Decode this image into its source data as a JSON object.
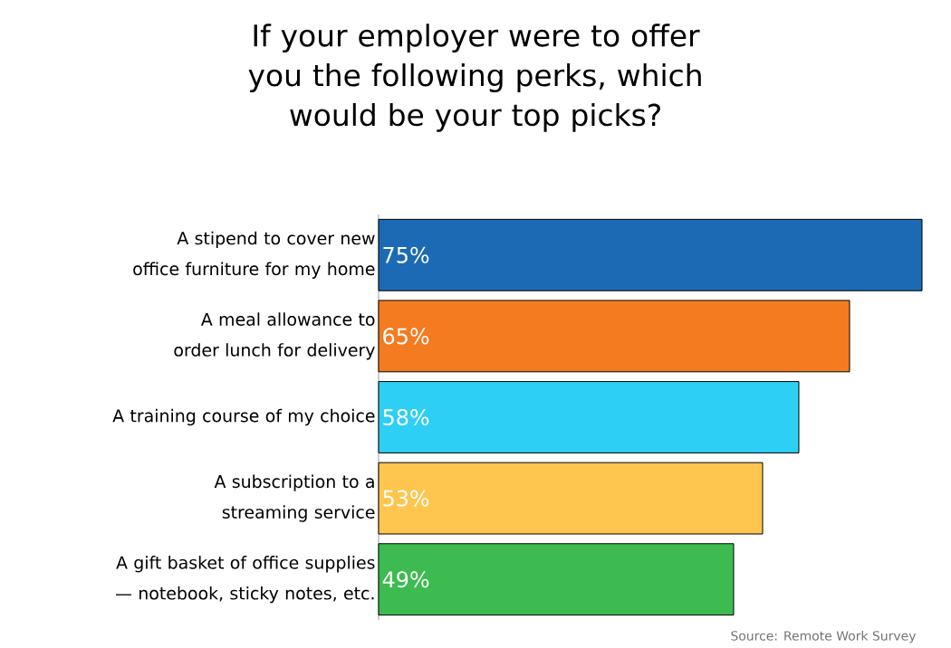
{
  "chart_data": {
    "type": "bar",
    "orientation": "horizontal",
    "title": "If your employer were to offer you the following perks, which would be your top picks?",
    "categories": [
      "A stipend to cover new office furniture for my home",
      "A meal allowance to order lunch for delivery",
      "A training course of my choice",
      "A subscription to a streaming service",
      "A gift basket of office supplies — notebook, sticky notes, etc."
    ],
    "values": [
      75,
      65,
      58,
      53,
      49
    ],
    "colors": [
      "#1c6ab4",
      "#f47b20",
      "#2dcff4",
      "#fec64e",
      "#3dbb50"
    ],
    "value_labels": [
      "75%",
      "65%",
      "58%",
      "53%",
      "49%"
    ],
    "annotations": [
      "Source: Remote Work Survey"
    ]
  }
}
